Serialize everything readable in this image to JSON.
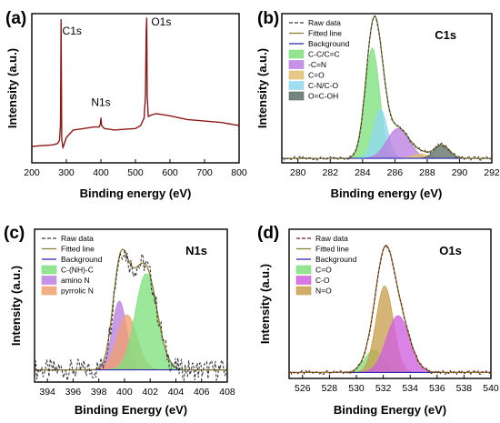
{
  "chart_data": [
    {
      "type": "line",
      "panel_label": "(a)",
      "xlabel": "Binding energy (eV)",
      "ylabel": "Intensity (a.u.)",
      "xlim": [
        200,
        800
      ],
      "ylim": [
        0,
        100
      ],
      "xticks": [
        200,
        300,
        400,
        500,
        600,
        700,
        800
      ],
      "color": "#8b1a1a",
      "annotations": [
        {
          "text": "C1s",
          "x": 284.8,
          "y": 86
        },
        {
          "text": "N1s",
          "x": 400,
          "y": 38
        },
        {
          "text": "O1s",
          "x": 532.5,
          "y": 92
        }
      ],
      "series": [
        {
          "x": [
            200,
            230,
            260,
            275,
            280,
            283,
            284.8,
            286.5,
            290,
            300,
            320,
            350,
            380,
            395,
            398.5,
            400,
            402,
            410,
            440,
            470,
            500,
            515,
            525,
            529,
            531,
            532.5,
            534,
            537,
            545,
            560,
            600,
            650,
            700,
            750,
            800
          ],
          "y": [
            11,
            11.5,
            12,
            13,
            15,
            25,
            96,
            16,
            10,
            17,
            22,
            23,
            24,
            24,
            26,
            30,
            25,
            23,
            22,
            22.5,
            23,
            25,
            30,
            45,
            88,
            97,
            45,
            31,
            32,
            33,
            31.5,
            29,
            28,
            27,
            25
          ]
        }
      ]
    },
    {
      "type": "area",
      "panel_label": "(b)",
      "core_title": "C1s",
      "xlabel": "Binding energy (eV)",
      "ylabel": "Intensity (a.u.)",
      "xlim": [
        279,
        292
      ],
      "ylim": [
        0,
        100
      ],
      "xticks": [
        280,
        282,
        284,
        286,
        288,
        290,
        292
      ],
      "legend": [
        "Raw data",
        "Fitted line",
        "Background",
        "C-C/C=C",
        "-C=N",
        "C=O",
        "C-N/C-O",
        "O=C-OH"
      ],
      "colors": {
        "raw": "#3a3a3a",
        "fitted": "#8b7d2c",
        "background": "#2b2bb0",
        "C-C/C=C": "#7fe27f",
        "-C=N": "#bb7fe0",
        "C=O": "#e0c070",
        "C-N/C-O": "#8fd8f0",
        "O=C-OH": "#5c7068"
      },
      "background": 3,
      "peaks": [
        {
          "name": "C-C/C=C",
          "center": 284.6,
          "height": 74,
          "fwhm": 1.05
        },
        {
          "name": "C-N/C-O",
          "center": 285.1,
          "height": 33,
          "fwhm": 1.0
        },
        {
          "name": "-C=N",
          "center": 286.2,
          "height": 20,
          "fwhm": 1.6
        },
        {
          "name": "C=O",
          "center": 287.6,
          "height": 3,
          "fwhm": 1.2
        },
        {
          "name": "O=C-OH",
          "center": 288.9,
          "height": 9,
          "fwhm": 1.1
        }
      ]
    },
    {
      "type": "area",
      "panel_label": "(c)",
      "core_title": "N1s",
      "xlabel": "Binding Energy (eV)",
      "ylabel": "Intensity (a.u.)",
      "xlim": [
        393,
        408
      ],
      "ylim": [
        0,
        100
      ],
      "xticks": [
        394,
        396,
        398,
        400,
        402,
        404,
        406,
        408
      ],
      "legend": [
        "Raw data",
        "Fitted line",
        "Background",
        "C-(NH)-C",
        "amino N",
        "pyrrolic N"
      ],
      "colors": {
        "raw": "#3a3a3a",
        "fitted": "#8b7d2c",
        "background": "#2b2bb0",
        "C-(NH)-C": "#7fe27f",
        "amino N": "#bb7fe0",
        "pyrrolic N": "#f0a070"
      },
      "background": 8,
      "noise": 7,
      "peaks": [
        {
          "name": "amino N",
          "center": 399.6,
          "height": 45,
          "fwhm": 1.3
        },
        {
          "name": "pyrrolic N",
          "center": 400.2,
          "height": 36,
          "fwhm": 1.8
        },
        {
          "name": "C-(NH)-C",
          "center": 401.7,
          "height": 63,
          "fwhm": 2.0
        }
      ]
    },
    {
      "type": "area",
      "panel_label": "(d)",
      "core_title": "O1s",
      "xlabel": "Binding Energy (eV)",
      "ylabel": "Intensity (a.u.)",
      "xlim": [
        525,
        540
      ],
      "ylim": [
        0,
        100
      ],
      "xticks": [
        526,
        528,
        530,
        532,
        534,
        536,
        538,
        540
      ],
      "legend": [
        "Raw data",
        "Fitted line",
        "Background",
        "C=O",
        "C-O",
        "N=O"
      ],
      "colors": {
        "raw": "#6b2020",
        "fitted": "#8b7d2c",
        "background": "#2b2bb0",
        "C=O": "#7fe27f",
        "C-O": "#d060e0",
        "N=O": "#c8a050"
      },
      "background": 4,
      "peaks": [
        {
          "name": "C=O",
          "center": 531.3,
          "height": 15,
          "fwhm": 1.6
        },
        {
          "name": "N=O",
          "center": 532.1,
          "height": 58,
          "fwhm": 1.5
        },
        {
          "name": "C-O",
          "center": 533.1,
          "height": 38,
          "fwhm": 2.0
        }
      ]
    }
  ]
}
